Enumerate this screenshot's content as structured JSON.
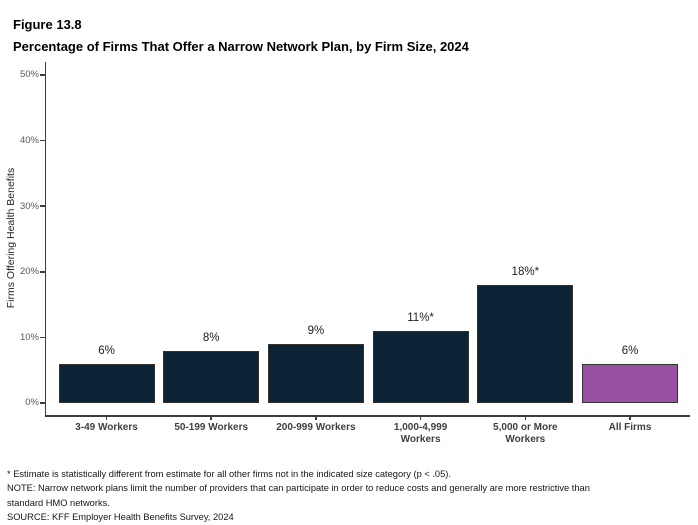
{
  "header": {
    "figure_label": "Figure 13.8",
    "title": "Percentage of Firms That Offer a Narrow Network Plan, by Firm Size, 2024"
  },
  "colors": {
    "bar_primary": "#0C2336",
    "bar_highlight": "#9952A3",
    "axis": "#3D3D3D",
    "ytick_text": "#595959",
    "category_text": "#3F3F3F"
  },
  "chart_data": {
    "type": "bar",
    "title": "Percentage of Firms That Offer a Narrow Network Plan, by Firm Size, 2024",
    "categories": [
      "3-49 Workers",
      "50-199 Workers",
      "200-999 Workers",
      "1,000-4,999 Workers",
      "5,000 or More Workers",
      "All Firms"
    ],
    "tick_labels": [
      "3-49 Workers",
      "50-199 Workers",
      "200-999 Workers",
      "1,000-4,999\nWorkers",
      "5,000 or More\nWorkers",
      "All Firms"
    ],
    "values": [
      6,
      8,
      9,
      11,
      18,
      6
    ],
    "value_labels": [
      "6%",
      "8%",
      "9%",
      "11%*",
      "18%*",
      "6%"
    ],
    "bar_colors": [
      "#0C2336",
      "#0C2336",
      "#0C2336",
      "#0C2336",
      "#0C2336",
      "#9952A3"
    ],
    "xlabel": "",
    "ylabel": "Firms Offering Health Benefits",
    "ylim": [
      0,
      50
    ],
    "yticks": [
      0,
      10,
      20,
      30,
      40,
      50
    ],
    "ytick_labels": [
      "0%",
      "10%",
      "20%",
      "30%",
      "40%",
      "50%"
    ],
    "grid": false,
    "legend": null
  },
  "footnotes": [
    "* Estimate is statistically different from estimate for all other firms not in the indicated size category (p < .05).",
    "NOTE: Narrow network plans limit the number of providers that can participate in order to reduce costs and generally are more restrictive than",
    "standard HMO networks.",
    "SOURCE: KFF Employer Health Benefits Survey, 2024"
  ]
}
